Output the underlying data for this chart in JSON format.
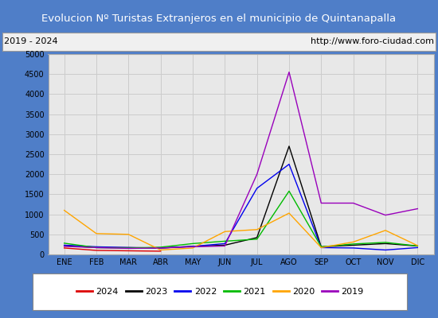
{
  "title": "Evolucion Nº Turistas Extranjeros en el municipio de Quintanapalla",
  "subtitle_left": "2019 - 2024",
  "subtitle_right": "http://www.foro-ciudad.com",
  "title_bg_color": "#4f7ec8",
  "title_text_color": "#ffffff",
  "subtitle_bg_color": "#f0f0f0",
  "subtitle_text_color": "#000000",
  "months": [
    "ENE",
    "FEB",
    "MAR",
    "ABR",
    "MAY",
    "JUN",
    "JUL",
    "AGO",
    "SEP",
    "OCT",
    "NOV",
    "DIC"
  ],
  "series": {
    "2024": {
      "color": "#dd0000",
      "data": [
        160,
        100,
        90,
        80,
        null,
        null,
        null,
        null,
        null,
        null,
        null,
        null
      ]
    },
    "2023": {
      "color": "#000000",
      "data": [
        220,
        170,
        170,
        160,
        200,
        230,
        420,
        2700,
        190,
        230,
        270,
        210
      ]
    },
    "2022": {
      "color": "#0000ee",
      "data": [
        230,
        190,
        170,
        160,
        200,
        270,
        1650,
        2250,
        170,
        160,
        110,
        170
      ]
    },
    "2021": {
      "color": "#00bb00",
      "data": [
        280,
        170,
        160,
        180,
        270,
        330,
        380,
        1580,
        190,
        260,
        300,
        210
      ]
    },
    "2020": {
      "color": "#ffa500",
      "data": [
        1100,
        520,
        500,
        110,
        160,
        570,
        620,
        1030,
        170,
        310,
        600,
        220
      ]
    },
    "2019": {
      "color": "#9900bb",
      "data": [
        200,
        170,
        150,
        160,
        190,
        210,
        2000,
        4550,
        1280,
        1280,
        980,
        1140
      ]
    }
  },
  "ylim": [
    0,
    5000
  ],
  "yticks": [
    0,
    500,
    1000,
    1500,
    2000,
    2500,
    3000,
    3500,
    4000,
    4500,
    5000
  ],
  "grid_color": "#cccccc",
  "plot_bg_color": "#e8e8e8",
  "legend_order": [
    "2024",
    "2023",
    "2022",
    "2021",
    "2020",
    "2019"
  ],
  "border_color": "#4f7ec8",
  "outer_bg": "#4f7ec8"
}
